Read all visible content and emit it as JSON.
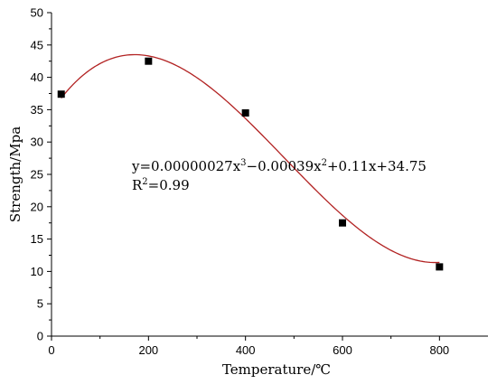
{
  "chart_data": {
    "type": "scatter",
    "xlabel": "Temperature/℃",
    "ylabel": "Strength/Mpa",
    "xlim": [
      0,
      900
    ],
    "ylim": [
      0,
      50
    ],
    "x_ticks": [
      0,
      200,
      400,
      600,
      800
    ],
    "y_ticks": [
      0,
      5,
      10,
      15,
      20,
      25,
      30,
      35,
      40,
      45,
      50
    ],
    "grid": false,
    "points": [
      {
        "x": 20,
        "y": 37.4
      },
      {
        "x": 200,
        "y": 42.5
      },
      {
        "x": 400,
        "y": 34.5
      },
      {
        "x": 600,
        "y": 17.5
      },
      {
        "x": 800,
        "y": 10.7
      }
    ],
    "fit": {
      "type": "cubic",
      "coefficients": [
        2.7e-07,
        -0.00039,
        0.11,
        34.75
      ],
      "x_range": [
        20,
        800
      ],
      "color": "#b22222"
    },
    "marker_color": "#000000",
    "annotation": {
      "equation_prefix": "y=0.00000027x",
      "equation_exp1": "3",
      "equation_mid": "−0.00039x",
      "equation_exp2": "2",
      "equation_suffix": "+0.11x+34.75",
      "r2_prefix": "R",
      "r2_exp": "2",
      "r2_suffix": "=0.99"
    }
  }
}
